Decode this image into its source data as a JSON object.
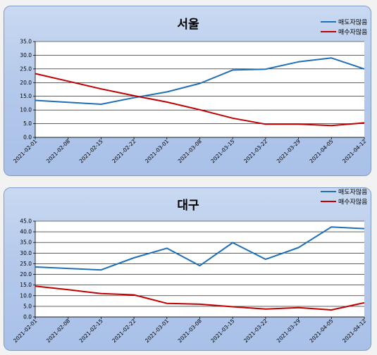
{
  "chart_data": [
    {
      "type": "line",
      "title": "서울",
      "categories": [
        "2021-02-01",
        "2021-02-08",
        "2021-02-15",
        "2021-02-22",
        "2021-03-01",
        "2021-03-08",
        "2021-03-15",
        "2021-03-22",
        "2021-03-29",
        "2021-04-05",
        "2021-04-12"
      ],
      "ylim": [
        0,
        35
      ],
      "yticks": [
        "0.0",
        "5.0",
        "10.0",
        "15.0",
        "20.0",
        "25.0",
        "30.0",
        "35.0"
      ],
      "ytick_values": [
        0,
        5,
        10,
        15,
        20,
        25,
        30,
        35
      ],
      "grid": true,
      "legend_position": "top-right",
      "series": [
        {
          "name": "매도자많음",
          "color": "#1f6fb6",
          "values": [
            13.5,
            12.8,
            12.1,
            14.5,
            16.6,
            19.7,
            24.6,
            24.9,
            27.6,
            29.0,
            25.0
          ]
        },
        {
          "name": "매수자많음",
          "color": "#c00000",
          "values": [
            23.3,
            20.5,
            17.7,
            15.2,
            12.9,
            10.1,
            7.0,
            4.8,
            4.8,
            4.3,
            5.3
          ]
        }
      ]
    },
    {
      "type": "line",
      "title": "대구",
      "categories": [
        "2021-02-01",
        "2021-02-08",
        "2021-02-15",
        "2021-02-22",
        "2021-03-01",
        "2021-03-08",
        "2021-03-15",
        "2021-03-22",
        "2021-03-29",
        "2021-04-05",
        "2021-04-12"
      ],
      "ylim": [
        0,
        45
      ],
      "yticks": [
        "0.0",
        "5.0",
        "10.0",
        "15.0",
        "20.0",
        "25.0",
        "30.0",
        "35.0",
        "40.0",
        "45.0"
      ],
      "ytick_values": [
        0,
        5,
        10,
        15,
        20,
        25,
        30,
        35,
        40,
        45
      ],
      "grid": true,
      "legend_position": "top-right",
      "series": [
        {
          "name": "매도자많음",
          "color": "#1f6fb6",
          "values": [
            23.5,
            22.8,
            22.1,
            27.8,
            32.3,
            24.1,
            34.9,
            27.1,
            32.6,
            42.3,
            41.5
          ]
        },
        {
          "name": "매수자많음",
          "color": "#c00000",
          "values": [
            14.5,
            12.8,
            11.0,
            10.4,
            6.4,
            6.0,
            4.8,
            3.7,
            4.4,
            3.3,
            6.7
          ]
        }
      ]
    }
  ]
}
